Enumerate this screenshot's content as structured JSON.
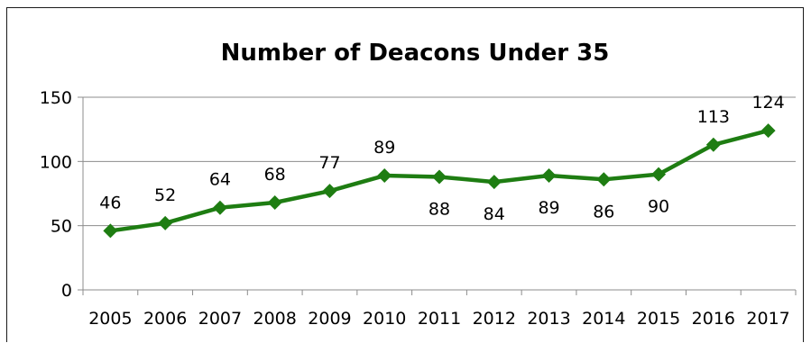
{
  "chart_data": {
    "type": "line",
    "title": "Number of Deacons Under 35",
    "x": [
      "2005",
      "2006",
      "2007",
      "2008",
      "2009",
      "2010",
      "2011",
      "2012",
      "2013",
      "2014",
      "2015",
      "2016",
      "2017"
    ],
    "series": [
      {
        "values": [
          46,
          52,
          64,
          68,
          77,
          89,
          88,
          84,
          89,
          86,
          90,
          113,
          124
        ],
        "data_labels": [
          "46",
          "52",
          "64",
          "68",
          "77",
          "89",
          "88",
          "84",
          "89",
          "86",
          "90",
          "113",
          "124"
        ],
        "label_positions": [
          "above",
          "above",
          "above",
          "above",
          "above",
          "above",
          "below",
          "below",
          "below",
          "below",
          "below",
          "above",
          "above"
        ],
        "color": "#1e7d12",
        "marker": "diamond"
      }
    ],
    "ylim": [
      0,
      150
    ],
    "yticks": [
      "0",
      "50",
      "100",
      "150"
    ],
    "grid": true,
    "legend": "none",
    "xlabel": "",
    "ylabel": ""
  }
}
